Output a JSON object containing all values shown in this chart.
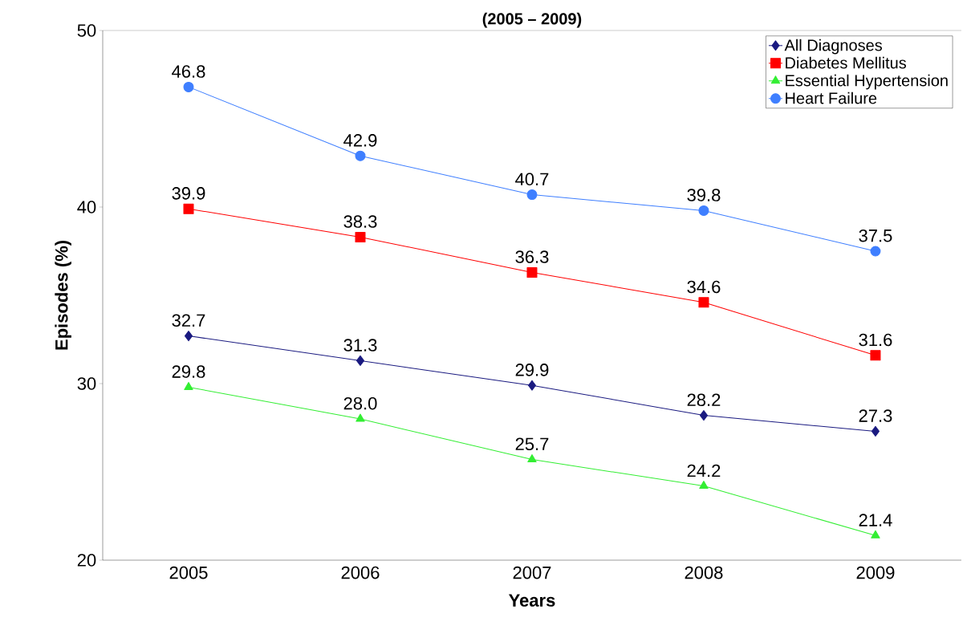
{
  "chart_data": {
    "type": "line",
    "title": "(2005 – 2009)",
    "xlabel": "Years",
    "ylabel": "Episodes (%)",
    "categories": [
      "2005",
      "2006",
      "2007",
      "2008",
      "2009"
    ],
    "series": [
      {
        "name": "All Diagnoses",
        "color": "#1a1a80",
        "marker": "diamond",
        "values": [
          32.7,
          31.3,
          29.9,
          28.2,
          27.3
        ],
        "value_labels": [
          "32.7",
          "31.3",
          "29.9",
          "28.2",
          "27.3"
        ]
      },
      {
        "name": "Diabetes Mellitus",
        "color": "#ff0000",
        "marker": "square",
        "values": [
          39.9,
          38.3,
          36.3,
          34.6,
          31.6
        ],
        "value_labels": [
          "39.9",
          "38.3",
          "36.3",
          "34.6",
          "31.6"
        ]
      },
      {
        "name": "Essential Hypertension",
        "color": "#33ee33",
        "marker": "triangle",
        "values": [
          29.8,
          28.0,
          25.7,
          24.2,
          21.4
        ],
        "value_labels": [
          "29.8",
          "28.0",
          "25.7",
          "24.2",
          "21.4"
        ]
      },
      {
        "name": "Heart Failure",
        "color": "#3f7fff",
        "marker": "circle",
        "values": [
          46.8,
          42.9,
          40.7,
          39.8,
          37.5
        ],
        "value_labels": [
          "46.8",
          "42.9",
          "40.7",
          "39.8",
          "37.5"
        ]
      }
    ],
    "ylim": [
      20,
      50
    ],
    "yticks": [
      20,
      30,
      40,
      50
    ],
    "grid": false,
    "legend": "top right",
    "line_style": "solid"
  }
}
